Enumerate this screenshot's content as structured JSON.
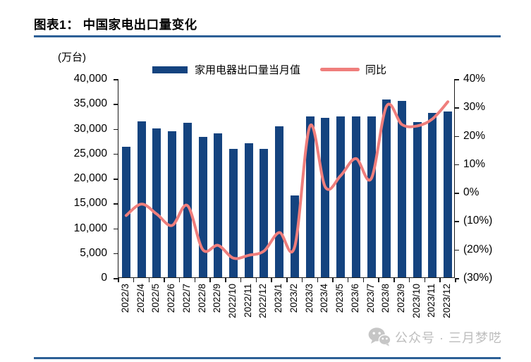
{
  "header": {
    "title": "图表1：  中国家电出口量变化"
  },
  "chart_data": {
    "type": "bar",
    "subtype": "combo-bar-line",
    "title": "中国家电出口量变化",
    "unit_label": "(万台)",
    "legend_position": "top",
    "grid": "off",
    "categories": [
      "2022/3",
      "2022/4",
      "2022/5",
      "2022/6",
      "2022/7",
      "2022/8",
      "2022/9",
      "2022/10",
      "2022/11",
      "2022/12",
      "2023/1",
      "2023/2",
      "2023/3",
      "2023/4",
      "2023/5",
      "2023/6",
      "2023/7",
      "2023/8",
      "2023/9",
      "2023/10",
      "2023/11",
      "2023/12"
    ],
    "series": [
      {
        "name": "家用电器出口量当月值",
        "type": "bar",
        "axis": "left",
        "unit": "万台",
        "color": "#14437f",
        "values": [
          26300,
          31300,
          29900,
          29300,
          31100,
          28300,
          28900,
          25800,
          26900,
          25800,
          30400,
          16400,
          32400,
          32100,
          32300,
          32400,
          32300,
          35800,
          35400,
          31200,
          33000,
          33400
        ]
      },
      {
        "name": "同比",
        "type": "line",
        "axis": "right",
        "unit": "%",
        "color": "#ef7e7c",
        "values": [
          -8,
          -4,
          -7.5,
          -11.5,
          -4.5,
          -20,
          -18.5,
          -23,
          -22,
          -20.5,
          -14,
          -19,
          23.5,
          2,
          6,
          12,
          5,
          30.5,
          24,
          23.5,
          26,
          32
        ]
      }
    ],
    "left_axis": {
      "min": 0,
      "max": 40000,
      "ticks": [
        "40,000",
        "35,000",
        "30,000",
        "25,000",
        "20,000",
        "15,000",
        "10,000",
        "5,000",
        "0"
      ]
    },
    "right_axis": {
      "min": -30,
      "max": 40,
      "ticks": [
        "40%",
        "30%",
        "20%",
        "10%",
        "0%",
        "(10%)",
        "(20%)",
        "(30%)"
      ]
    }
  },
  "footer": {
    "watermark_icon": "wechat-icon",
    "watermark": "公众号 · 三月梦呓"
  }
}
